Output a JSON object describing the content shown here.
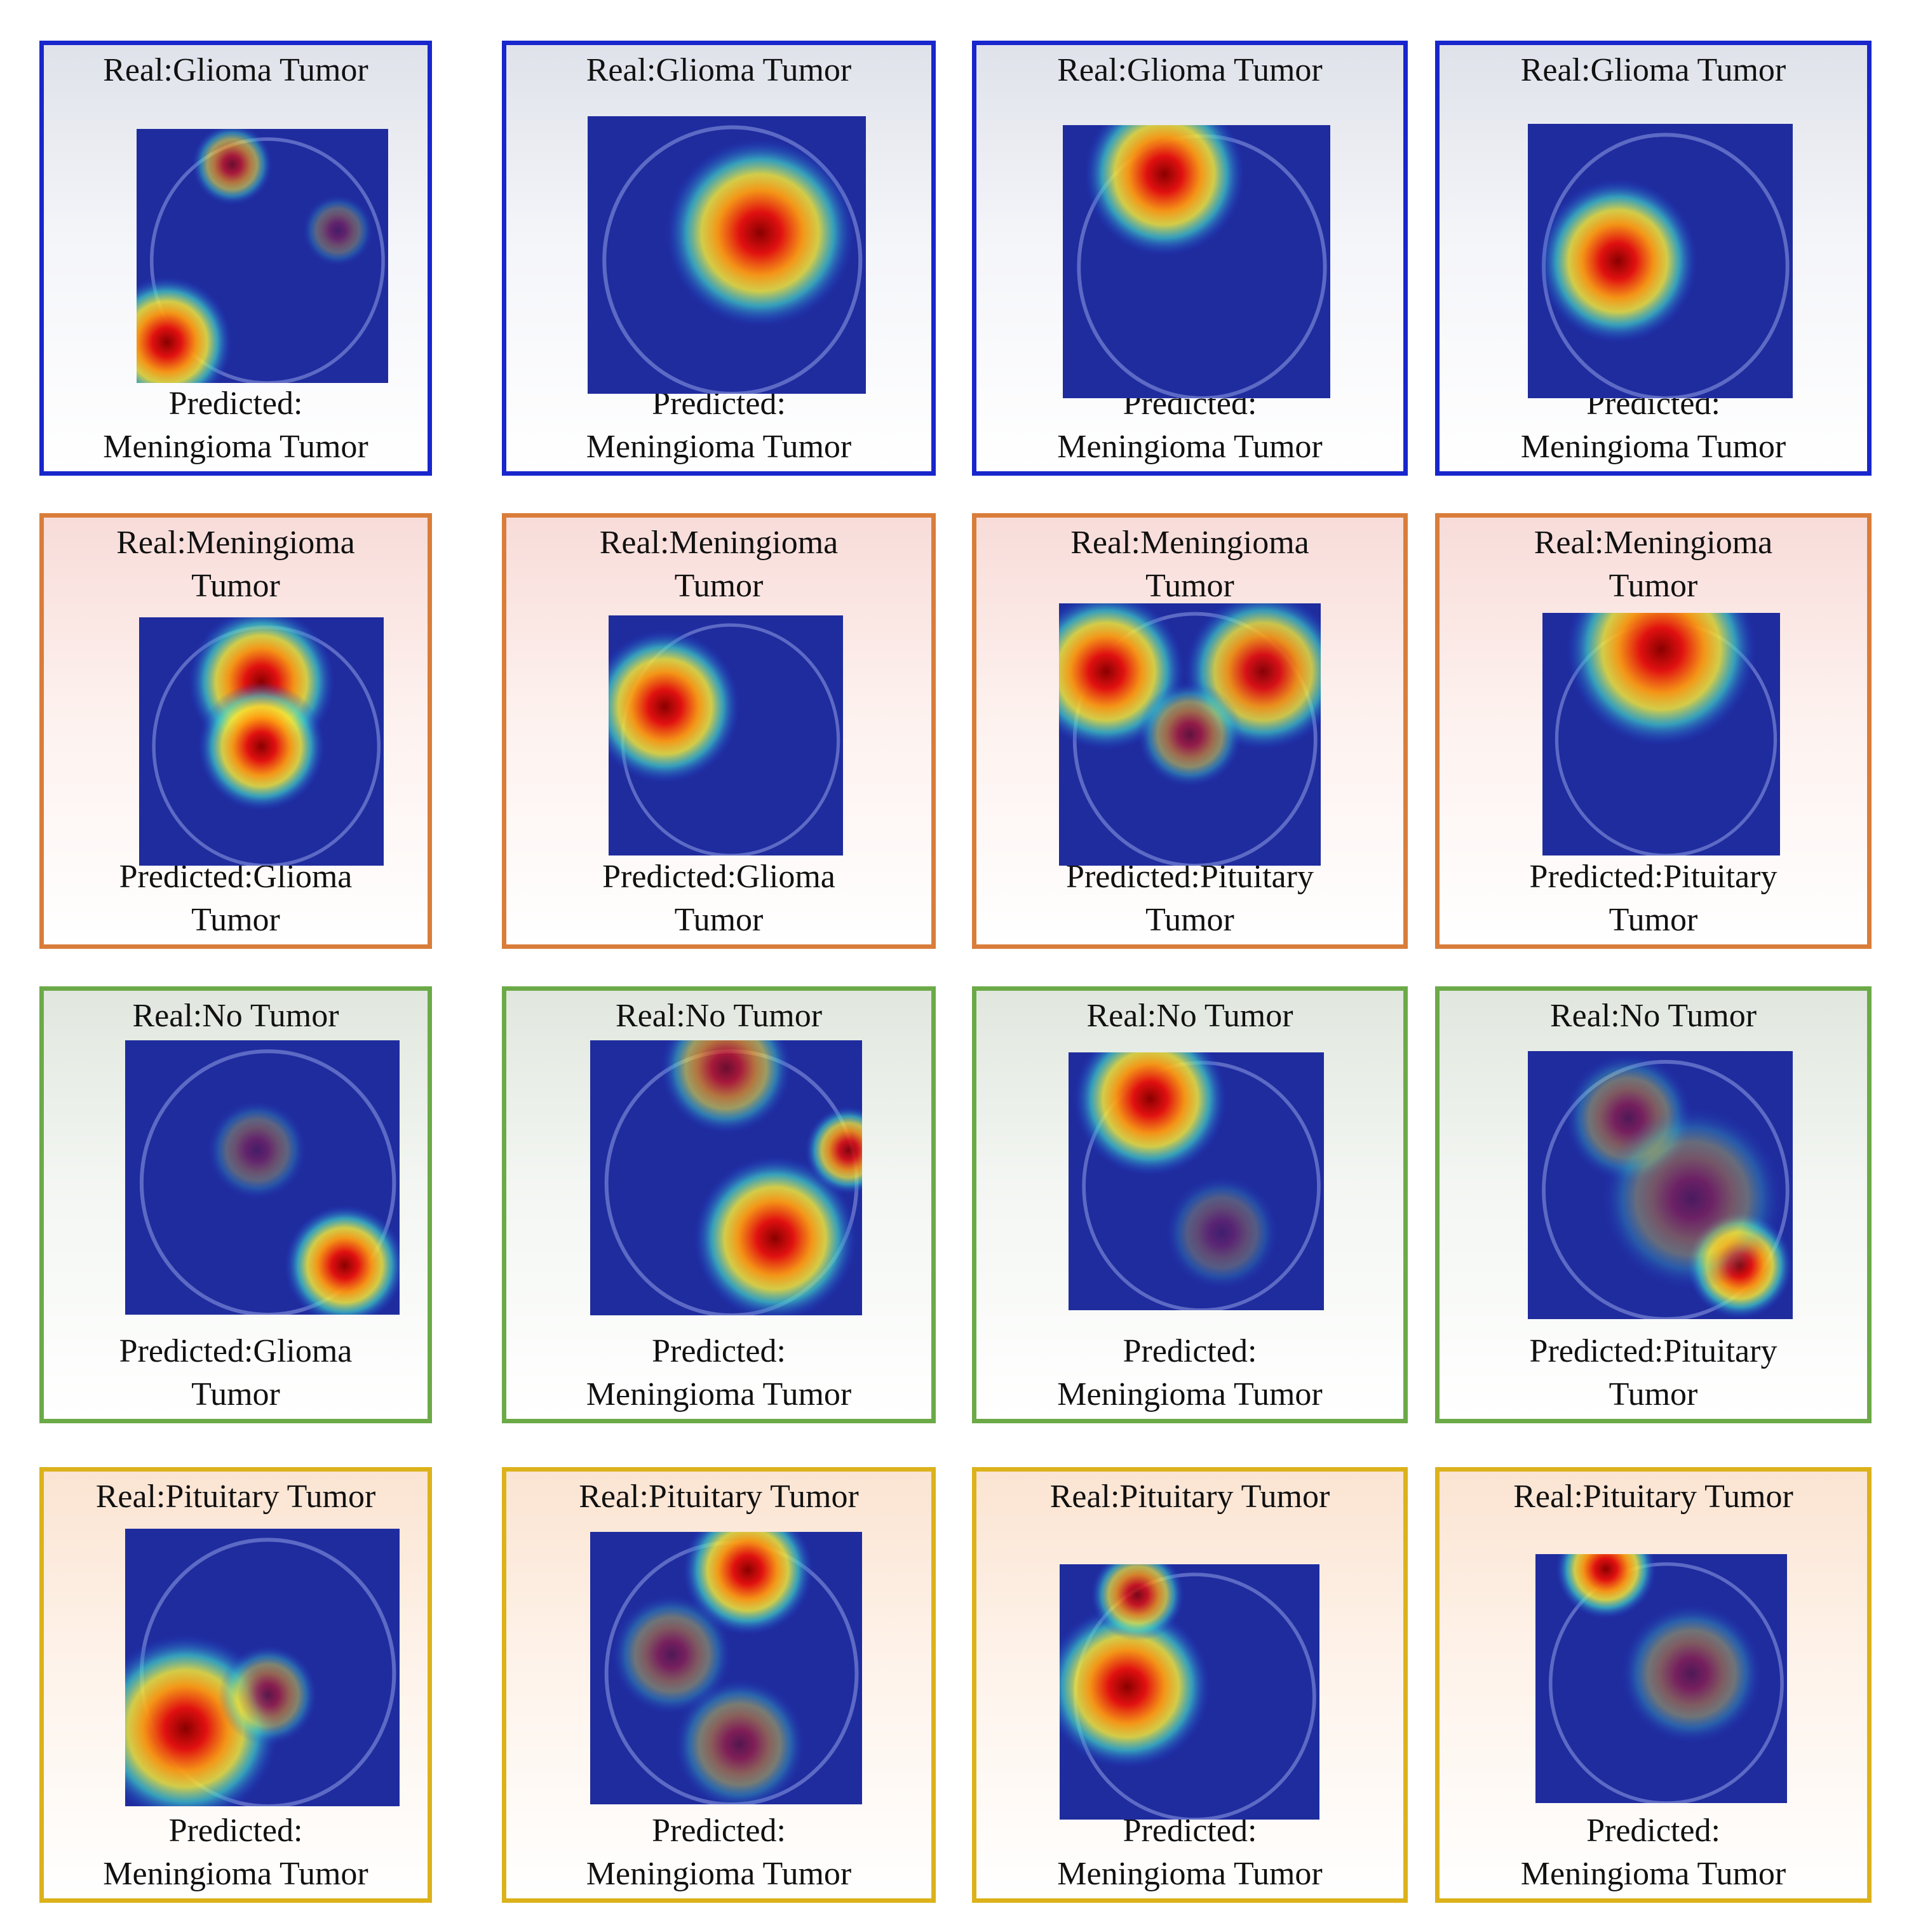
{
  "panels": [
    {
      "group": 0,
      "real": [
        "Real:Glioma Tumor"
      ],
      "predicted": [
        "Predicted:",
        "Meningioma Tumor"
      ],
      "image": "mri-gradcam-heatmap"
    },
    {
      "group": 0,
      "real": [
        "Real:Glioma Tumor"
      ],
      "predicted": [
        "Predicted:",
        "Meningioma Tumor"
      ],
      "image": "mri-gradcam-heatmap"
    },
    {
      "group": 0,
      "real": [
        "Real:Glioma Tumor"
      ],
      "predicted": [
        "Predicted:",
        "Meningioma Tumor"
      ],
      "image": "mri-gradcam-heatmap"
    },
    {
      "group": 0,
      "real": [
        "Real:Glioma Tumor"
      ],
      "predicted": [
        "Predicted:",
        "Meningioma Tumor"
      ],
      "image": "mri-gradcam-heatmap"
    },
    {
      "group": 1,
      "real": [
        "Real:Meningioma",
        "Tumor"
      ],
      "predicted": [
        "Predicted:Glioma",
        "Tumor"
      ],
      "image": "mri-gradcam-heatmap"
    },
    {
      "group": 1,
      "real": [
        "Real:Meningioma",
        "Tumor"
      ],
      "predicted": [
        "Predicted:Glioma",
        "Tumor"
      ],
      "image": "mri-gradcam-heatmap"
    },
    {
      "group": 1,
      "real": [
        "Real:Meningioma",
        "Tumor"
      ],
      "predicted": [
        "Predicted:Pituitary",
        "Tumor"
      ],
      "image": "mri-gradcam-heatmap"
    },
    {
      "group": 1,
      "real": [
        "Real:Meningioma",
        "Tumor"
      ],
      "predicted": [
        "Predicted:Pituitary",
        "Tumor"
      ],
      "image": "mri-gradcam-heatmap"
    },
    {
      "group": 2,
      "real": [
        "Real:No Tumor"
      ],
      "predicted": [
        "Predicted:Glioma",
        "Tumor"
      ],
      "image": "mri-gradcam-heatmap"
    },
    {
      "group": 2,
      "real": [
        "Real:No Tumor"
      ],
      "predicted": [
        "Predicted:",
        "Meningioma Tumor"
      ],
      "image": "mri-gradcam-heatmap"
    },
    {
      "group": 2,
      "real": [
        "Real:No Tumor"
      ],
      "predicted": [
        "Predicted:",
        "Meningioma Tumor"
      ],
      "image": "mri-gradcam-heatmap"
    },
    {
      "group": 2,
      "real": [
        "Real:No Tumor"
      ],
      "predicted": [
        "Predicted:Pituitary",
        "Tumor"
      ],
      "image": "mri-gradcam-heatmap"
    },
    {
      "group": 3,
      "real": [
        "Real:Pituitary Tumor"
      ],
      "predicted": [
        "Predicted:",
        "Meningioma Tumor"
      ],
      "image": "mri-gradcam-heatmap"
    },
    {
      "group": 3,
      "real": [
        "Real:Pituitary Tumor"
      ],
      "predicted": [
        "Predicted:",
        "Meningioma Tumor"
      ],
      "image": "mri-gradcam-heatmap"
    },
    {
      "group": 3,
      "real": [
        "Real:Pituitary Tumor"
      ],
      "predicted": [
        "Predicted:",
        "Meningioma Tumor"
      ],
      "image": "mri-gradcam-heatmap"
    },
    {
      "group": 3,
      "real": [
        "Real:Pituitary Tumor"
      ],
      "predicted": [
        "Predicted:",
        "Meningioma Tumor"
      ],
      "image": "mri-gradcam-heatmap"
    }
  ]
}
